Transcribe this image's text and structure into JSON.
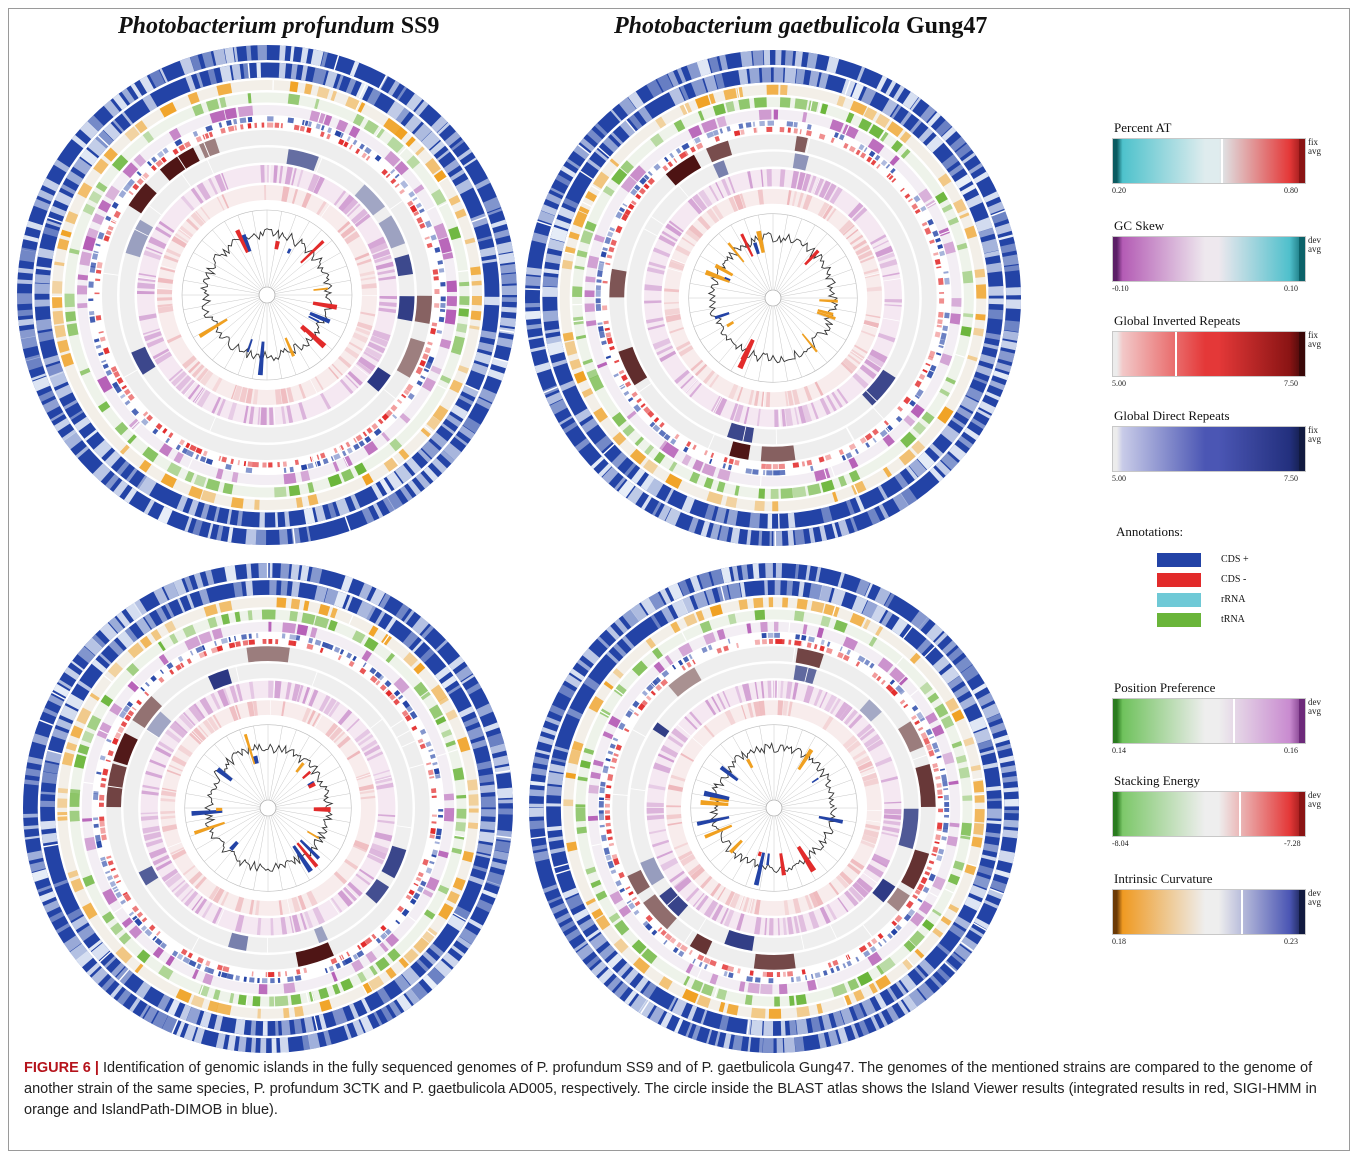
{
  "titles": {
    "left": {
      "species": "Photobacterium profundum",
      "strain": "SS9"
    },
    "right": {
      "species": "Photobacterium gaetbulicola",
      "strain": "Gung47"
    }
  },
  "legend": {
    "scales": [
      {
        "label": "Percent AT",
        "min": "0.20",
        "max": "0.80",
        "side_top": "fix",
        "side_bottom": "avg",
        "colors": [
          "#0b5a60",
          "#4ec2cc",
          "#dfecee",
          "#e43838",
          "#8a1414"
        ]
      },
      {
        "label": "GC Skew",
        "min": "-0.10",
        "max": "0.10",
        "side_top": "dev",
        "side_bottom": "avg",
        "colors": [
          "#5b1f66",
          "#b45cb5",
          "#eee8ee",
          "#4fc0cc",
          "#0c6269"
        ]
      },
      {
        "label": "Global Inverted Repeats",
        "min": "5.00",
        "max": "7.50",
        "side_top": "fix",
        "side_bottom": "avg",
        "colors": [
          "#ececec",
          "#f2c8c8",
          "#e43838",
          "#8a1414",
          "#3a0808"
        ]
      },
      {
        "label": "Global Direct Repeats",
        "min": "5.00",
        "max": "7.50",
        "side_top": "fix",
        "side_bottom": "avg",
        "colors": [
          "#ececec",
          "#c8cbe8",
          "#4b56b4",
          "#23307e",
          "#111a40"
        ]
      },
      {
        "label": "Position Preference",
        "min": "0.14",
        "max": "0.16",
        "side_top": "dev",
        "side_bottom": "avg",
        "colors": [
          "#2a7b1f",
          "#6fc25c",
          "#eeeeee",
          "#c98bd0",
          "#6d2a7a"
        ]
      },
      {
        "label": "Stacking Energy",
        "min": "-8.04",
        "max": "-7.28",
        "side_top": "dev",
        "side_bottom": "avg",
        "colors": [
          "#2a7b1f",
          "#7dc86a",
          "#eeeeee",
          "#e43838",
          "#8a1414"
        ]
      },
      {
        "label": "Intrinsic Curvature",
        "min": "0.18",
        "max": "0.23",
        "side_top": "dev",
        "side_bottom": "avg",
        "colors": [
          "#6b3a06",
          "#ef9a22",
          "#eeeeee",
          "#4b56b4",
          "#111a40"
        ]
      }
    ],
    "annotations": {
      "label": "Annotations:",
      "items": [
        {
          "label": "CDS +",
          "color": "#2343a6"
        },
        {
          "label": "CDS -",
          "color": "#e22b2b"
        },
        {
          "label": "rRNA",
          "color": "#6fc9d6"
        },
        {
          "label": "tRNA",
          "color": "#6ab53a"
        }
      ]
    }
  },
  "caption": {
    "figure_label": "FIGURE 6 |",
    "text": " Identification of genomic islands in the fully sequenced genomes of P. profundum SS9 and of P. gaetbulicola Gung47. The genomes of the mentioned strains are compared to the genome of another strain of the same species, P. profundum 3CTK and P. gaetbulicola AD005, respectively. The circle inside the BLAST atlas shows the Island Viewer results (integrated results in red, SIGI-HMM in orange and IslandPath-DIMOB in blue)."
  },
  "colors": {
    "cds_plus": "#2343a6",
    "cds_minus": "#e22b2b",
    "rrna": "#6fc9d6",
    "trna": "#6ab53a",
    "island_integrated": "#e22b2b",
    "island_sigi_hmm": "#f0a020",
    "island_dimob": "#2343a6"
  }
}
